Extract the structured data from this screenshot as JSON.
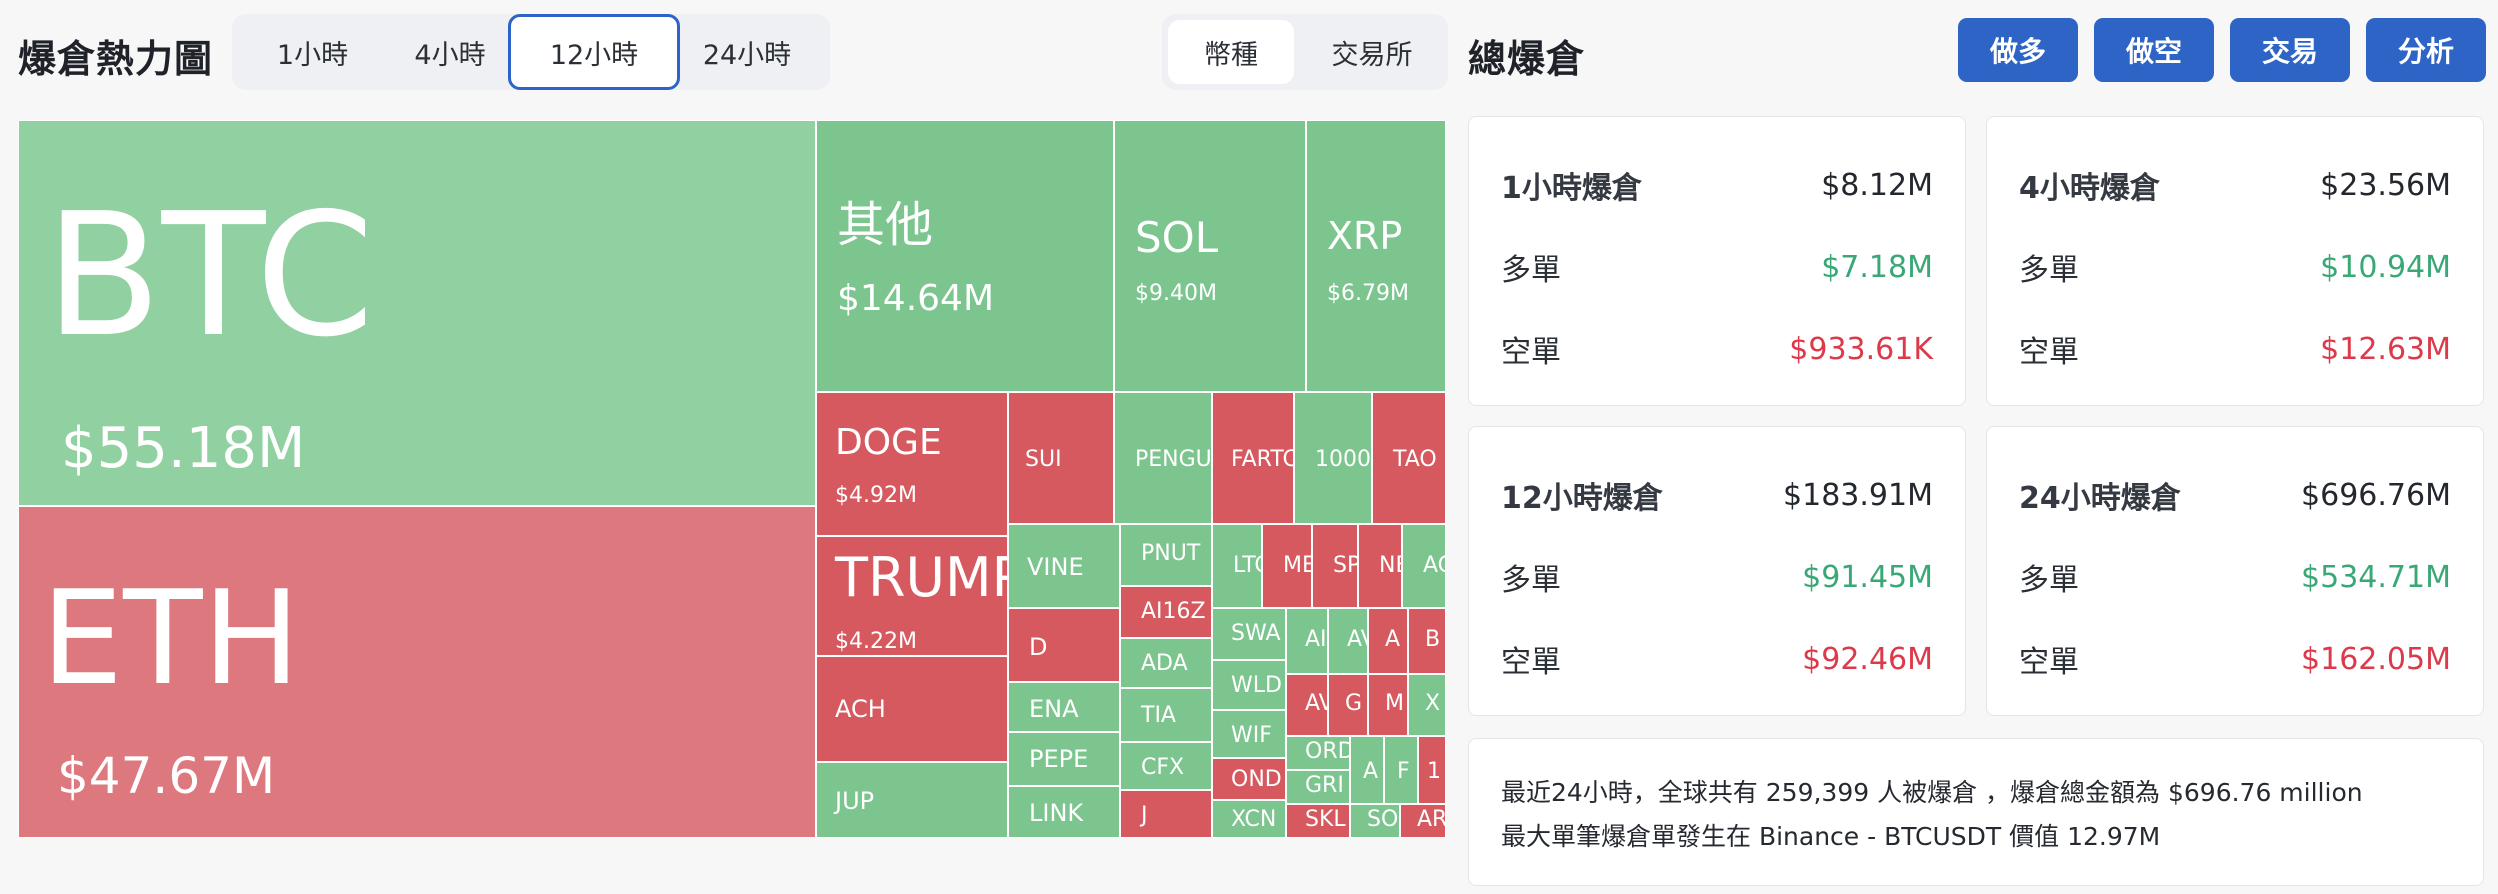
{
  "header": {
    "heatmap_title": "爆倉熱力圖",
    "total_title": "總爆倉"
  },
  "time_tabs": [
    "1小時",
    "4小時",
    "12小時",
    "24小時"
  ],
  "active_time_tab": "12小時",
  "group_tabs": [
    "幣種",
    "交易所"
  ],
  "active_group_tab": "幣種",
  "actions": [
    "做多",
    "做空",
    "交易",
    "分析"
  ],
  "colors": {
    "long_tile": "#7cc58f",
    "btc_tile": "#90d0a1",
    "short_tile": "#d5595f",
    "eth_tile": "#dc787e",
    "accent": "#2d64c6",
    "green_text": "#3aa876",
    "red_text": "#dc3a4a"
  },
  "treemap": [
    {
      "symbol": "BTC",
      "value": "$55.18M",
      "color": "btc"
    },
    {
      "symbol": "ETH",
      "value": "$47.67M",
      "color": "eth"
    },
    {
      "symbol": "其他",
      "value": "$14.64M",
      "color": "long"
    },
    {
      "symbol": "SOL",
      "value": "$9.40M",
      "color": "long"
    },
    {
      "symbol": "XRP",
      "value": "$6.79M",
      "color": "long"
    },
    {
      "symbol": "DOGE",
      "value": "$4.92M",
      "color": "short"
    },
    {
      "symbol": "SUI",
      "value": "",
      "color": "short"
    },
    {
      "symbol": "PENGU",
      "value": "",
      "color": "long"
    },
    {
      "symbol": "FARTC",
      "value": "",
      "color": "short"
    },
    {
      "symbol": "1000",
      "value": "",
      "color": "long"
    },
    {
      "symbol": "TAO",
      "value": "",
      "color": "short"
    },
    {
      "symbol": "TRUMP",
      "value": "$4.22M",
      "color": "short"
    },
    {
      "symbol": "ACH",
      "value": "",
      "color": "short"
    },
    {
      "symbol": "JUP",
      "value": "",
      "color": "long"
    },
    {
      "symbol": "VINE",
      "value": "",
      "color": "long"
    },
    {
      "symbol": "D",
      "value": "",
      "color": "short"
    },
    {
      "symbol": "ENA",
      "value": "",
      "color": "long"
    },
    {
      "symbol": "PEPE",
      "value": "",
      "color": "long"
    },
    {
      "symbol": "LINK",
      "value": "",
      "color": "long"
    },
    {
      "symbol": "PNUT",
      "value": "",
      "color": "long"
    },
    {
      "symbol": "AI16Z",
      "value": "",
      "color": "short"
    },
    {
      "symbol": "ADA",
      "value": "",
      "color": "long"
    },
    {
      "symbol": "TIA",
      "value": "",
      "color": "long"
    },
    {
      "symbol": "CFX",
      "value": "",
      "color": "long"
    },
    {
      "symbol": "J",
      "value": "",
      "color": "short"
    },
    {
      "symbol": "LTC",
      "value": "",
      "color": "long"
    },
    {
      "symbol": "ME",
      "value": "",
      "color": "short"
    },
    {
      "symbol": "SP",
      "value": "",
      "color": "short"
    },
    {
      "symbol": "NE",
      "value": "",
      "color": "short"
    },
    {
      "symbol": "AG",
      "value": "",
      "color": "long"
    },
    {
      "symbol": "SWA",
      "value": "",
      "color": "long"
    },
    {
      "symbol": "WLD",
      "value": "",
      "color": "long"
    },
    {
      "symbol": "WIF",
      "value": "",
      "color": "long"
    },
    {
      "symbol": "OND",
      "value": "",
      "color": "short"
    },
    {
      "symbol": "XCN",
      "value": "",
      "color": "long"
    },
    {
      "symbol": "AI",
      "value": "",
      "color": "long"
    },
    {
      "symbol": "AV",
      "value": "",
      "color": "long"
    },
    {
      "symbol": "A",
      "value": "",
      "color": "short"
    },
    {
      "symbol": "B",
      "value": "",
      "color": "short"
    },
    {
      "symbol": "AV",
      "value": "",
      "color": "short"
    },
    {
      "symbol": "G",
      "value": "",
      "color": "short"
    },
    {
      "symbol": "M",
      "value": "",
      "color": "short"
    },
    {
      "symbol": "X",
      "value": "",
      "color": "long"
    },
    {
      "symbol": "ORD",
      "value": "",
      "color": "long"
    },
    {
      "symbol": "GRI",
      "value": "",
      "color": "long"
    },
    {
      "symbol": "SKL",
      "value": "",
      "color": "short"
    },
    {
      "symbol": "A",
      "value": "",
      "color": "long"
    },
    {
      "symbol": "F",
      "value": "",
      "color": "long"
    },
    {
      "symbol": "1",
      "value": "",
      "color": "short"
    },
    {
      "symbol": "SO",
      "value": "",
      "color": "long"
    },
    {
      "symbol": "AR",
      "value": "",
      "color": "short"
    }
  ],
  "stats": [
    {
      "title": "1小時爆倉",
      "total": "$8.12M",
      "long_label": "多單",
      "long": "$7.18M",
      "short_label": "空單",
      "short": "$933.61K"
    },
    {
      "title": "4小時爆倉",
      "total": "$23.56M",
      "long_label": "多單",
      "long": "$10.94M",
      "short_label": "空單",
      "short": "$12.63M"
    },
    {
      "title": "12小時爆倉",
      "total": "$183.91M",
      "long_label": "多單",
      "long": "$91.45M",
      "short_label": "空單",
      "short": "$92.46M"
    },
    {
      "title": "24小時爆倉",
      "total": "$696.76M",
      "long_label": "多單",
      "long": "$534.71M",
      "short_label": "空單",
      "short": "$162.05M"
    }
  ],
  "summary": {
    "line1": "最近24小時，全球共有 259,399 人被爆倉 ，爆倉總金額為 $696.76 million",
    "line2": "最大單筆爆倉單發生在 Binance - BTCUSDT 價值 12.97M"
  }
}
